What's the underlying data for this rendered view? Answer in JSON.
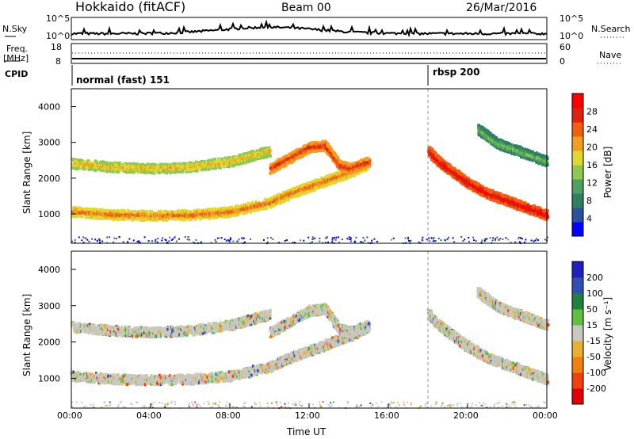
{
  "header": {
    "station": "Hokkaido (fitACF)",
    "beam": "Beam 00",
    "date": "26/Mar/2016"
  },
  "left_labels": {
    "nsky": "N.Sky",
    "freq": "Freq.",
    "mhz": "[MHz]",
    "cpid": "CPID"
  },
  "right_labels": {
    "nsearch": "N.Search",
    "nave": "Nave"
  },
  "noise_axis": {
    "left_ticks": [
      "10^5",
      "10^0"
    ],
    "right_ticks": [
      "10^5",
      "10^0"
    ]
  },
  "freq_axis": {
    "left_ticks": [
      "18",
      "8"
    ],
    "right_ticks": [
      "60",
      "0"
    ]
  },
  "cpid": {
    "mode1": "normal (fast) 151",
    "mode2": "rbsp 200",
    "switch_hour": 18.0
  },
  "time_axis": {
    "title": "Time UT",
    "ticks": [
      "00:00",
      "04:00",
      "08:00",
      "12:00",
      "16:00",
      "20:00",
      "00:00"
    ]
  },
  "power_panel": {
    "ylabel": "Slant Range [km]",
    "yticks": [
      "1000",
      "2000",
      "3000",
      "4000"
    ],
    "colorbar_label": "Power [dB]",
    "colorbar_ticks": [
      "4",
      "8",
      "12",
      "16",
      "20",
      "24",
      "28"
    ],
    "colors": [
      "#0000ff",
      "#2d4fa0",
      "#2f8060",
      "#4ea060",
      "#8ec850",
      "#e0d830",
      "#f0a020",
      "#f06010",
      "#e02010",
      "#ff0000"
    ]
  },
  "velocity_panel": {
    "ylabel": "Slant Range [km]",
    "yticks": [
      "1000",
      "2000",
      "3000",
      "4000"
    ],
    "colorbar_label": "Velocity [m s⁻¹]",
    "colorbar_ticks": [
      "200",
      "100",
      "50",
      "15",
      "-15",
      "-50",
      "-100",
      "-200"
    ],
    "colors": [
      "#2020c0",
      "#3050b0",
      "#208040",
      "#60c040",
      "#c8c8c0",
      "#e8b030",
      "#f08010",
      "#f04010",
      "#e00000"
    ]
  },
  "chart_data": {
    "type": "heatmap",
    "x_unit": "hours UT",
    "y_unit": "slant range km",
    "xlim": [
      0,
      24
    ],
    "ylim": [
      180,
      4500
    ],
    "echo_bands": [
      {
        "t": [
          0,
          2,
          4,
          6,
          8,
          10,
          11,
          12,
          13,
          14,
          15
        ],
        "r": [
          1100,
          1020,
          990,
          1010,
          1100,
          1350,
          1600,
          1800,
          2000,
          2200,
          2450
        ],
        "power_db": 22
      },
      {
        "t": [
          0,
          2,
          4,
          6,
          8,
          9,
          10
        ],
        "r": [
          2450,
          2350,
          2300,
          2350,
          2500,
          2650,
          2800
        ],
        "power_db": 18
      },
      {
        "t": [
          10,
          11,
          12,
          12.8,
          13.5,
          14,
          15
        ],
        "r": [
          2300,
          2600,
          2900,
          2950,
          2400,
          2300,
          2500
        ],
        "power_db": 24
      },
      {
        "t": [
          18,
          18.5,
          19,
          19.5,
          20,
          21,
          22,
          23,
          24
        ],
        "r": [
          2800,
          2500,
          2300,
          2100,
          1900,
          1600,
          1400,
          1200,
          1000
        ],
        "power_db": 26
      },
      {
        "t": [
          20.5,
          21,
          21.5,
          22,
          23,
          24
        ],
        "r": [
          3400,
          3200,
          3000,
          2900,
          2700,
          2500
        ],
        "power_db": 12
      }
    ]
  }
}
